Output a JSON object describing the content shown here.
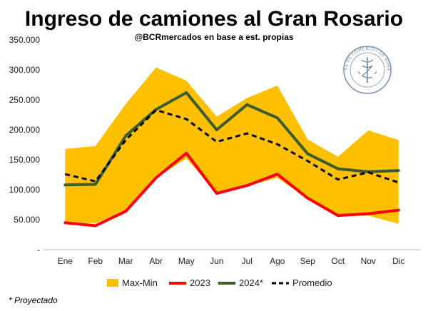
{
  "chart_data": {
    "type": "line",
    "title": "Ingreso de camiones al Gran Rosario",
    "subtitle": "@BCRmercados  en base a est. propias",
    "categories": [
      "Ene",
      "Feb",
      "Mar",
      "Abr",
      "May",
      "Jun",
      "Jul",
      "Ago",
      "Sep",
      "Oct",
      "Nov",
      "Dic"
    ],
    "y_ticks": [
      "-",
      "50.000",
      "100.000",
      "150.000",
      "200.000",
      "250.000",
      "300.000",
      "350.000"
    ],
    "ylim": [
      0,
      350000
    ],
    "grid": false,
    "legend_position": "bottom",
    "band": {
      "name": "Max-Min",
      "color": "#FFC000",
      "max": [
        168000,
        173000,
        243000,
        304000,
        282000,
        222000,
        253000,
        274000,
        184000,
        155000,
        199000,
        183000
      ],
      "min": [
        46000,
        44000,
        65000,
        120000,
        152000,
        96000,
        106000,
        120000,
        85000,
        55000,
        57000,
        43000
      ]
    },
    "series": [
      {
        "name": "2023",
        "color": "#FF0000",
        "style": "solid",
        "values": [
          45000,
          40000,
          64000,
          120000,
          161000,
          94000,
          107000,
          126000,
          86000,
          57000,
          60000,
          66000
        ]
      },
      {
        "name": "2024*",
        "color": "#3D5C2A",
        "style": "solid",
        "values": [
          108000,
          109000,
          190000,
          234000,
          262000,
          200000,
          242000,
          220000,
          160000,
          135000,
          130000,
          132000
        ]
      },
      {
        "name": "Promedio",
        "color": "#000000",
        "style": "dashed",
        "values": [
          126000,
          114000,
          183000,
          233000,
          218000,
          180000,
          194000,
          176000,
          148000,
          117000,
          129000,
          112000
        ]
      }
    ],
    "footnote": "* Proyectado"
  },
  "seal": {
    "text": "BOLSA DE COMERCIO DE ROSARIO",
    "color": "#6b7fa8"
  }
}
